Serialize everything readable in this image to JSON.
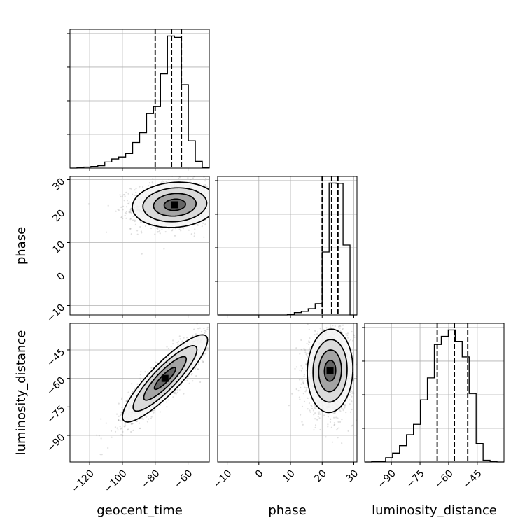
{
  "chart_data": {
    "type": "corner",
    "parameters": [
      "geocent_time",
      "phase",
      "luminosity_distance"
    ],
    "axis_labels": {
      "geocent_time": "geocent_time",
      "phase": "phase",
      "luminosity_distance": "luminosity_distance"
    },
    "ranges": {
      "geocent_time": [
        -132,
        -47
      ],
      "phase": [
        -13,
        31
      ],
      "luminosity_distance": [
        -104,
        -31
      ]
    },
    "ticks": {
      "geocent_time": [
        -120,
        -100,
        -80,
        -60
      ],
      "phase": [
        -10,
        0,
        10,
        20,
        30
      ],
      "luminosity_distance": [
        -90,
        -75,
        -60,
        -45
      ]
    },
    "tick_labels": {
      "geocent_time": [
        "−120",
        "−100",
        "−80",
        "−60"
      ],
      "phase": [
        "−10",
        "0",
        "10",
        "20",
        "30"
      ],
      "luminosity_distance": [
        "−90",
        "−75",
        "−60",
        "−45"
      ]
    },
    "histograms": {
      "geocent_time": {
        "edges": [
          -132,
          -127.75,
          -123.5,
          -119.25,
          -115,
          -110.75,
          -106.5,
          -102.25,
          -98,
          -93.75,
          -89.5,
          -85.25,
          -81,
          -76.75,
          -72.5,
          -68.25,
          -64,
          -59.75,
          -55.5,
          -51.25,
          -47
        ],
        "counts": [
          0,
          2,
          3,
          5,
          7,
          18,
          27,
          33,
          43,
          76,
          105,
          162,
          183,
          280,
          393,
          389,
          248,
          81,
          20,
          1
        ]
      },
      "phase": {
        "edges": [
          -13,
          -10.8,
          -8.6,
          -6.4,
          -4.2,
          -2,
          0.2,
          2.4,
          4.6,
          6.8,
          9,
          11.2,
          13.4,
          15.6,
          17.8,
          20,
          22.2,
          24.4,
          26.6,
          28.8,
          31
        ],
        "counts": [
          0,
          0,
          0,
          0,
          0,
          0,
          0,
          0,
          0,
          0,
          2,
          7,
          11,
          19,
          34,
          190,
          398,
          397,
          211,
          0
        ]
      },
      "luminosity_distance": {
        "edges": [
          -104,
          -100.35,
          -96.7,
          -93.05,
          -89.4,
          -85.75,
          -82.1,
          -78.45,
          -74.8,
          -71.15,
          -67.5,
          -63.85,
          -60.2,
          -56.55,
          -52.9,
          -49.25,
          -45.6,
          -41.95,
          -38.3,
          -34.65,
          -31
        ],
        "counts": [
          0,
          1,
          1,
          12,
          25,
          46,
          77,
          106,
          175,
          237,
          331,
          354,
          372,
          340,
          296,
          193,
          52,
          5,
          1,
          0
        ]
      }
    },
    "quantiles": {
      "geocent_time": [
        -80,
        -70,
        -64
      ],
      "phase": [
        20,
        23,
        25
      ],
      "luminosity_distance": [
        -66,
        -57,
        -50
      ]
    },
    "pairs": [
      {
        "x": "geocent_time",
        "y": "phase",
        "mean": [
          -68,
          22
        ],
        "sd": [
          13,
          3.6
        ],
        "rho": 0.1,
        "points": 1500
      },
      {
        "x": "geocent_time",
        "y": "luminosity_distance",
        "mean": [
          -74,
          -60
        ],
        "sd": [
          13,
          11.5
        ],
        "rho": 0.88,
        "points": 1500
      },
      {
        "x": "phase",
        "y": "luminosity_distance",
        "mean": [
          22.5,
          -56
        ],
        "sd": [
          3.6,
          11
        ],
        "rho": 0.05,
        "points": 1500
      }
    ],
    "contour_levels": [
      0.118,
      0.393,
      0.675,
      0.864
    ],
    "grid": true
  }
}
